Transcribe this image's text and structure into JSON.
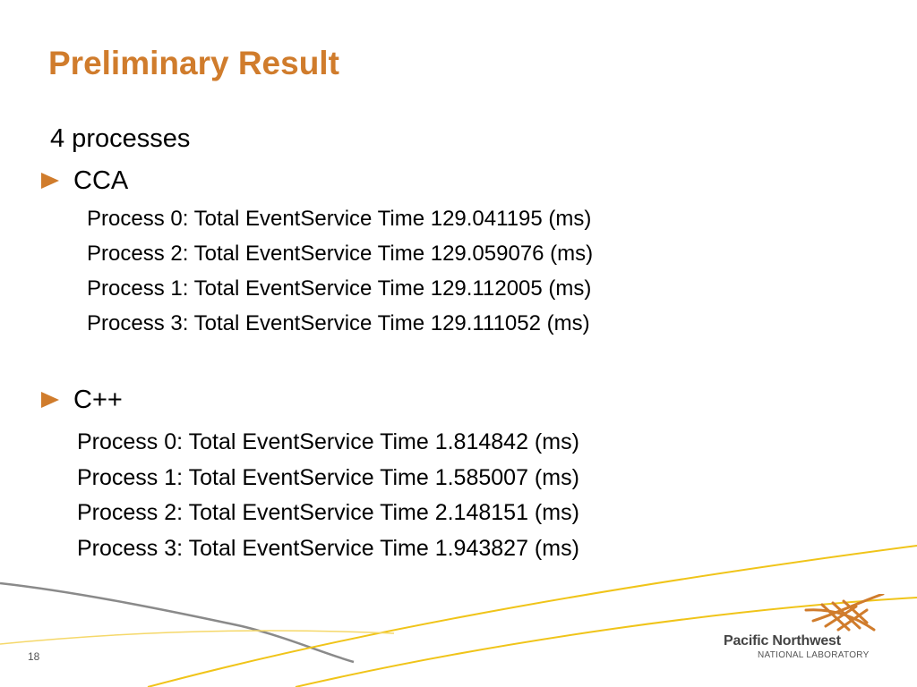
{
  "slide": {
    "title": "Preliminary Result",
    "intro": "4 processes",
    "sections": [
      {
        "label": "CCA",
        "lines": [
          "Process 0: Total EventService Time 129.041195 (ms)",
          "Process 2: Total EventService Time 129.059076 (ms)",
          "Process 1: Total EventService Time 129.112005 (ms)",
          "Process 3: Total EventService Time 129.111052 (ms)"
        ]
      },
      {
        "label": "C++",
        "lines": [
          "Process 0: Total EventService Time 1.814842 (ms)",
          "Process 1: Total EventService Time 1.585007 (ms)",
          "Process 2: Total EventService Time 2.148151 (ms)",
          "Process 3: Total EventService Time 1.943827 (ms)"
        ]
      }
    ],
    "page_number": "18",
    "logo": {
      "name": "Pacific Northwest",
      "subtitle": "NATIONAL LABORATORY"
    },
    "colors": {
      "accent": "#d07c2c",
      "swoosh_gold": "#f0c419",
      "swoosh_gray": "#8a8a8a"
    }
  }
}
